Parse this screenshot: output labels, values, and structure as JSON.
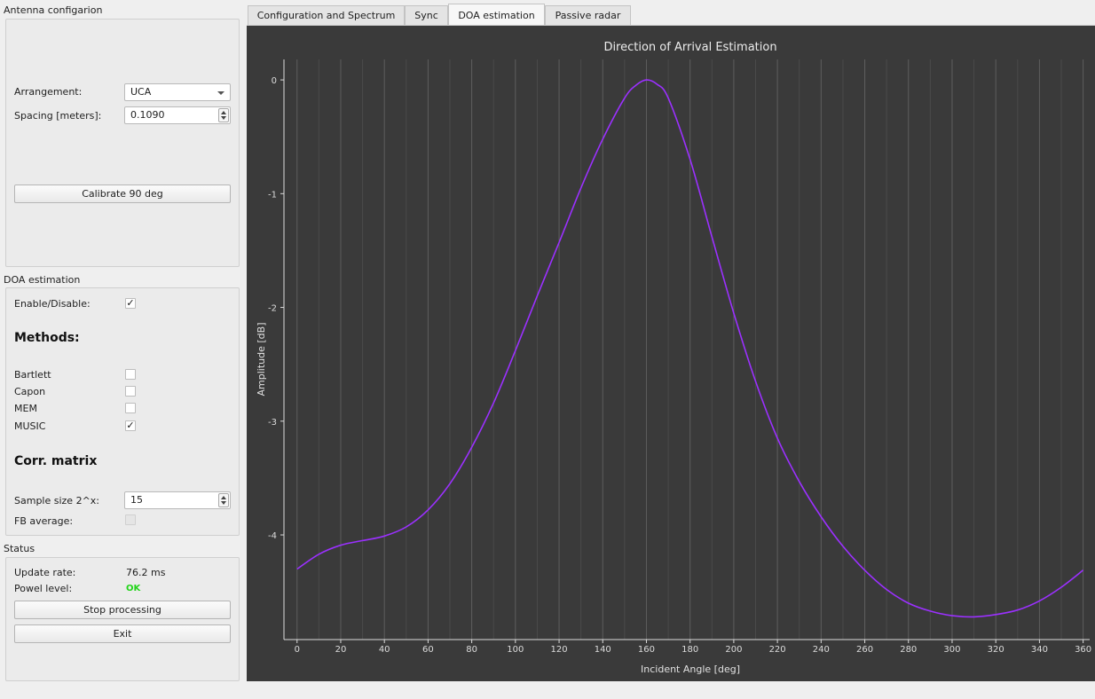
{
  "antenna": {
    "title": "Antenna configarion",
    "arrangement_label": "Arrangement:",
    "arrangement_value": "UCA",
    "spacing_label": "Spacing [meters]:",
    "spacing_value": "0.1090",
    "calibrate_label": "Calibrate 90 deg"
  },
  "doa": {
    "title": "DOA estimation",
    "enable_label": "Enable/Disable:",
    "enable_checked": true,
    "methods_heading": "Methods:",
    "methods": [
      {
        "label": "Bartlett",
        "checked": false
      },
      {
        "label": "Capon",
        "checked": false
      },
      {
        "label": "MEM",
        "checked": false
      },
      {
        "label": "MUSIC",
        "checked": true
      }
    ],
    "corr_heading": "Corr. matrix",
    "sample_label": "Sample size 2^x:",
    "sample_value": "15",
    "fb_label": "FB average:",
    "fb_checked": false
  },
  "status": {
    "title": "Status",
    "update_label": "Update rate:",
    "update_value": "76.2 ms",
    "power_label": "Powel level:",
    "power_value": "OK",
    "stop_label": "Stop processing",
    "exit_label": "Exit"
  },
  "tabs": [
    {
      "label": "Configuration and Spectrum",
      "active": false
    },
    {
      "label": "Sync",
      "active": false
    },
    {
      "label": "DOA estimation",
      "active": true
    },
    {
      "label": "Passive radar",
      "active": false
    }
  ],
  "colors": {
    "plot_bg": "#3a3a3a",
    "curve": "#9b30ff",
    "ok": "#22d41a"
  },
  "chart_data": {
    "type": "line",
    "title": "Direction of Arrival Estimation",
    "xlabel": "Incident Angle [deg]",
    "ylabel": "Amplitude [dB]",
    "xlim": [
      -6,
      363
    ],
    "ylim": [
      -4.92,
      0.18
    ],
    "xticks": [
      0,
      20,
      40,
      60,
      80,
      100,
      120,
      140,
      160,
      180,
      200,
      220,
      240,
      260,
      280,
      300,
      320,
      340,
      360
    ],
    "yticks": [
      0,
      -1,
      -2,
      -3,
      -4
    ],
    "grid": "vertical",
    "series": [
      {
        "x": [
          0,
          10,
          20,
          30,
          40,
          50,
          60,
          70,
          80,
          90,
          100,
          110,
          120,
          130,
          140,
          150,
          155,
          160,
          165,
          170,
          180,
          190,
          200,
          210,
          220,
          230,
          240,
          250,
          260,
          270,
          280,
          290,
          300,
          310,
          320,
          330,
          340,
          350,
          360
        ],
        "y": [
          -4.3,
          -4.17,
          -4.09,
          -4.05,
          -4.01,
          -3.93,
          -3.78,
          -3.55,
          -3.23,
          -2.84,
          -2.38,
          -1.9,
          -1.43,
          -0.95,
          -0.52,
          -0.16,
          -0.05,
          0.0,
          -0.04,
          -0.16,
          -0.7,
          -1.38,
          -2.05,
          -2.65,
          -3.15,
          -3.53,
          -3.84,
          -4.1,
          -4.31,
          -4.48,
          -4.6,
          -4.67,
          -4.71,
          -4.72,
          -4.7,
          -4.66,
          -4.58,
          -4.46,
          -4.31
        ]
      }
    ]
  }
}
